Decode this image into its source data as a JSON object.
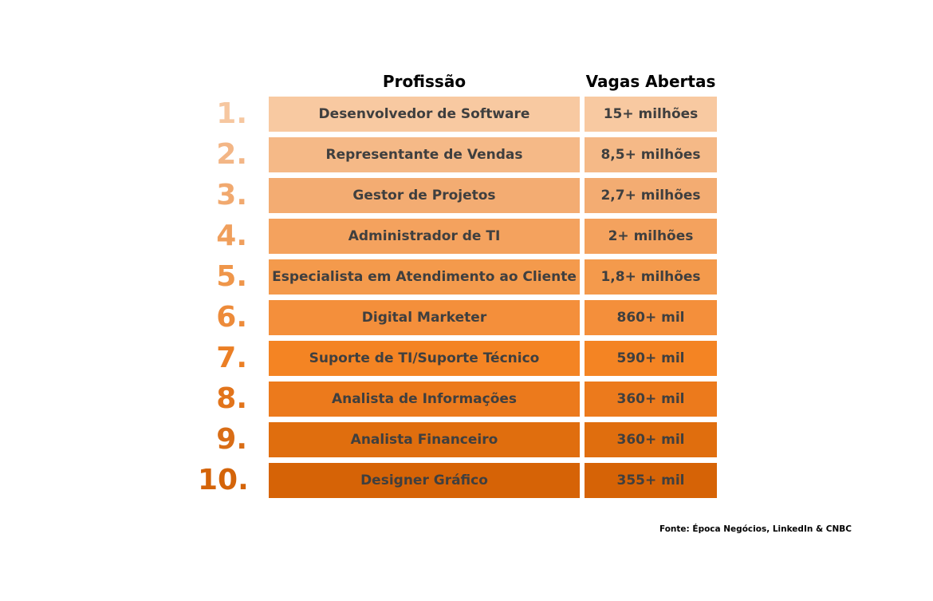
{
  "chart_data": {
    "type": "table",
    "headers": {
      "profession": "Profissão",
      "openings": "Vagas Abertas"
    },
    "rows": [
      {
        "rank": "1.",
        "profession": "Desenvolvedor de Software",
        "openings": "15+ milhões",
        "value": 15000000
      },
      {
        "rank": "2.",
        "profession": "Representante de Vendas",
        "openings": "8,5+ milhões",
        "value": 8500000
      },
      {
        "rank": "3.",
        "profession": "Gestor de Projetos",
        "openings": "2,7+ milhões",
        "value": 2700000
      },
      {
        "rank": "4.",
        "profession": "Administrador de TI",
        "openings": "2+ milhões",
        "value": 2000000
      },
      {
        "rank": "5.",
        "profession": "Especialista em Atendimento ao Cliente",
        "openings": "1,8+ milhões",
        "value": 1800000
      },
      {
        "rank": "6.",
        "profession": "Digital Marketer",
        "openings": "860+ mil",
        "value": 860000
      },
      {
        "rank": "7.",
        "profession": "Suporte de TI/Suporte Técnico",
        "openings": "590+ mil",
        "value": 590000
      },
      {
        "rank": "8.",
        "profession": "Analista de Informações",
        "openings": "360+ mil",
        "value": 360000
      },
      {
        "rank": "9.",
        "profession": "Analista Financeiro",
        "openings": "360+ mil",
        "value": 360000
      },
      {
        "rank": "10.",
        "profession": "Designer Gráfico",
        "openings": "355+ mil",
        "value": 355000
      }
    ],
    "colors": {
      "cells": [
        "#f8c9a1",
        "#f5b987",
        "#f3ac72",
        "#f4a25e",
        "#f49a4c",
        "#f48f3b",
        "#f48423",
        "#ec7a1c",
        "#e06e0e",
        "#d66306"
      ],
      "ranks": [
        "#f6c7a0",
        "#f3b686",
        "#f1a96f",
        "#f09f5c",
        "#ef964a",
        "#ed8b3a",
        "#eb7f25",
        "#e2741b",
        "#d96d16",
        "#d46409"
      ]
    }
  },
  "source": "Fonte: Época Negócios, LinkedIn & CNBC"
}
